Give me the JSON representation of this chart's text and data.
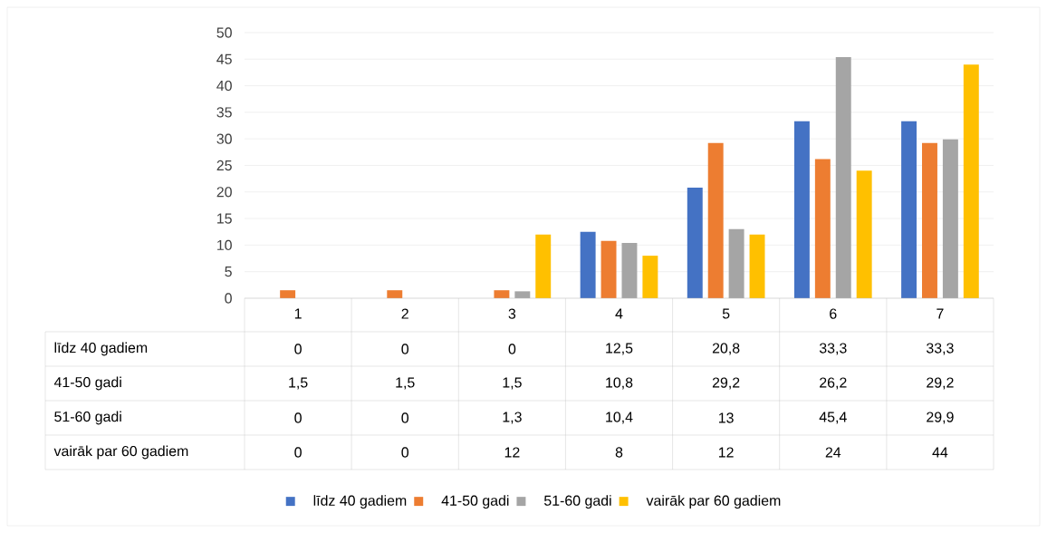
{
  "chart_data": {
    "type": "bar",
    "categories": [
      "1",
      "2",
      "3",
      "4",
      "5",
      "6",
      "7"
    ],
    "series": [
      {
        "name": "līdz 40 gadiem",
        "color": "#4472c4",
        "values": [
          0,
          0,
          0,
          12.5,
          20.8,
          33.3,
          33.3
        ],
        "value_labels": [
          "0",
          "0",
          "0",
          "12,5",
          "20,8",
          "33,3",
          "33,3"
        ]
      },
      {
        "name": "41-50 gadi",
        "color": "#ed7d31",
        "values": [
          1.5,
          1.5,
          1.5,
          10.8,
          29.2,
          26.2,
          29.2
        ],
        "value_labels": [
          "1,5",
          "1,5",
          "1,5",
          "10,8",
          "29,2",
          "26,2",
          "29,2"
        ]
      },
      {
        "name": "51-60 gadi",
        "color": "#a5a5a5",
        "values": [
          0,
          0,
          1.3,
          10.4,
          13,
          45.4,
          29.9
        ],
        "value_labels": [
          "0",
          "0",
          "1,3",
          "10,4",
          "13",
          "45,4",
          "29,9"
        ]
      },
      {
        "name": "vairāk par 60 gadiem",
        "color": "#ffc000",
        "values": [
          0,
          0,
          12,
          8,
          12,
          24,
          44
        ],
        "value_labels": [
          "0",
          "0",
          "12",
          "8",
          "12",
          "24",
          "44"
        ]
      }
    ],
    "ylim": [
      0,
      50
    ],
    "yticks": [
      0,
      5,
      10,
      15,
      20,
      25,
      30,
      35,
      40,
      45,
      50
    ],
    "grid": "y",
    "legend": "bottom"
  }
}
